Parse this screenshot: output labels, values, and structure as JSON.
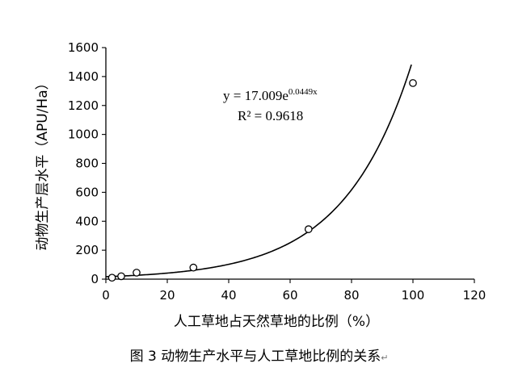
{
  "chart_data": {
    "type": "scatter",
    "title": "",
    "xlabel": "人工草地占天然草地的比例（%）",
    "ylabel": "动物生产层水平（APU/Ha）",
    "xlim": [
      0,
      120
    ],
    "ylim": [
      0,
      1600
    ],
    "xticks": [
      0,
      20,
      40,
      60,
      80,
      100,
      120
    ],
    "yticks": [
      0,
      200,
      400,
      600,
      800,
      1000,
      1200,
      1400,
      1600
    ],
    "grid": false,
    "legend": "none",
    "points": [
      {
        "x": 2,
        "y": 10
      },
      {
        "x": 5,
        "y": 20
      },
      {
        "x": 10,
        "y": 45
      },
      {
        "x": 28.5,
        "y": 80
      },
      {
        "x": 66,
        "y": 345
      },
      {
        "x": 100,
        "y": 1355
      }
    ],
    "trendline": {
      "type": "exponential",
      "a": 17.009,
      "b": 0.0449,
      "x_range": [
        0,
        99.5
      ]
    },
    "annotations": {
      "equation_main": "y = 17.009e",
      "equation_exponent": "0.0449x",
      "r_squared": "R² = 0.9618"
    },
    "colors": {
      "axis": "#000000",
      "marker_stroke": "#000000",
      "marker_fill": "#ffffff",
      "trendline": "#000000"
    }
  },
  "caption": {
    "text": "图 3  动物生产水平与人工草地比例的关系",
    "mark": "↵"
  }
}
